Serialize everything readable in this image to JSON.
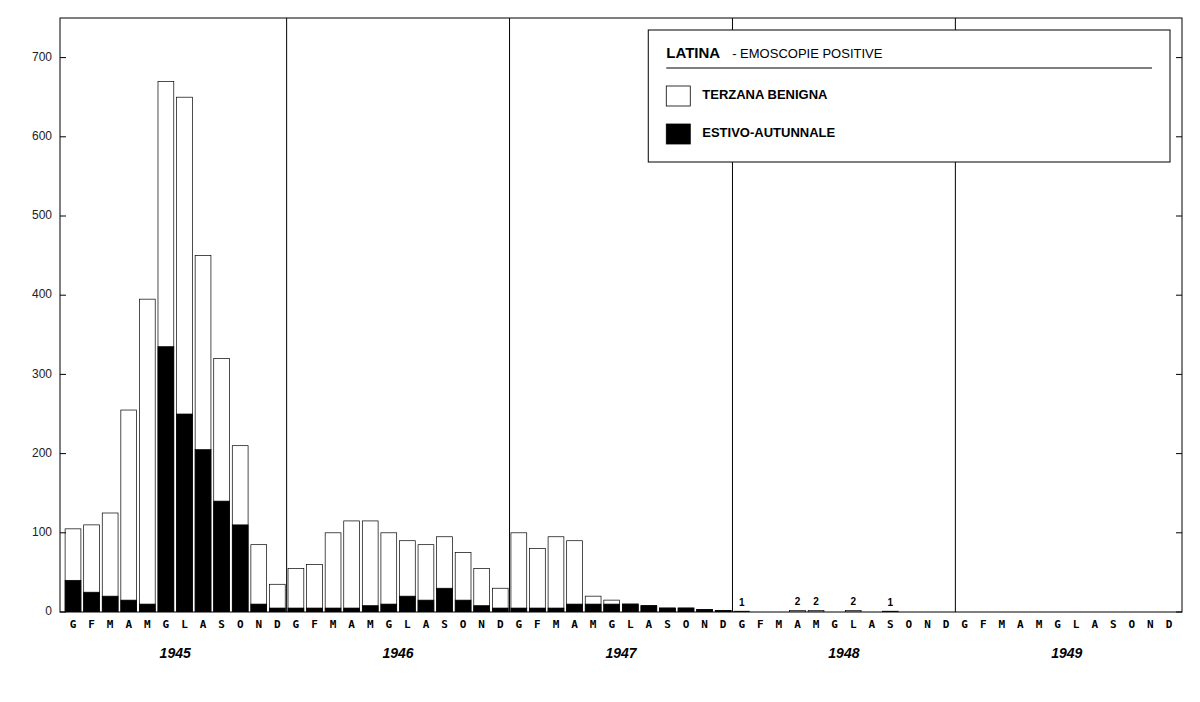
{
  "chart_data": {
    "type": "bar",
    "title": "LATINA",
    "subtitle": "- EMOSCOPIE POSITIVE",
    "categories": [
      "G",
      "F",
      "M",
      "A",
      "M",
      "G",
      "L",
      "A",
      "S",
      "O",
      "N",
      "D",
      "G",
      "F",
      "M",
      "A",
      "M",
      "G",
      "L",
      "A",
      "S",
      "O",
      "N",
      "D",
      "G",
      "F",
      "M",
      "A",
      "M",
      "G",
      "L",
      "A",
      "S",
      "O",
      "N",
      "D",
      "G",
      "F",
      "M",
      "A",
      "M",
      "G",
      "L",
      "A",
      "S",
      "O",
      "N",
      "D",
      "G",
      "F",
      "M",
      "A",
      "M",
      "G",
      "L",
      "A",
      "S",
      "O",
      "N",
      "D"
    ],
    "groups": [
      "1945",
      "1946",
      "1947",
      "1948",
      "1949"
    ],
    "series": [
      {
        "name": "TERZANA BENIGNA",
        "color": "#ffffff",
        "values": [
          105,
          110,
          125,
          255,
          395,
          670,
          650,
          450,
          320,
          210,
          85,
          35,
          55,
          60,
          100,
          115,
          115,
          100,
          90,
          85,
          95,
          75,
          55,
          30,
          100,
          80,
          95,
          90,
          20,
          15,
          10,
          8,
          5,
          5,
          3,
          2,
          1,
          0,
          0,
          2,
          2,
          0,
          2,
          0,
          1,
          0,
          0,
          0,
          0,
          0,
          0,
          0,
          0,
          0,
          0,
          0,
          0,
          0,
          0,
          0
        ],
        "value_labels": [
          null,
          null,
          null,
          null,
          null,
          null,
          null,
          null,
          null,
          null,
          null,
          null,
          null,
          null,
          null,
          null,
          null,
          null,
          null,
          null,
          null,
          null,
          null,
          null,
          null,
          null,
          null,
          null,
          null,
          null,
          null,
          null,
          null,
          null,
          null,
          null,
          "1",
          null,
          null,
          "2",
          "2",
          null,
          "2",
          null,
          "1",
          null,
          null,
          null,
          null,
          null,
          null,
          null,
          null,
          null,
          null,
          null,
          null,
          null,
          null,
          null
        ]
      },
      {
        "name": "ESTIVO-AUTUNNALE",
        "color": "#000000",
        "values": [
          40,
          25,
          20,
          15,
          10,
          335,
          250,
          205,
          140,
          110,
          10,
          5,
          5,
          5,
          5,
          5,
          8,
          10,
          20,
          15,
          30,
          15,
          8,
          5,
          5,
          5,
          5,
          10,
          10,
          10,
          10,
          8,
          5,
          5,
          3,
          2,
          0,
          0,
          0,
          0,
          0,
          0,
          0,
          0,
          0,
          0,
          0,
          0,
          0,
          0,
          0,
          0,
          0,
          0,
          0,
          0,
          0,
          0,
          0,
          0
        ]
      }
    ],
    "ylim": [
      0,
      750
    ],
    "yticks": [
      0,
      100,
      200,
      300,
      400,
      500,
      600,
      700
    ],
    "grid": false,
    "legend": "upper right"
  }
}
